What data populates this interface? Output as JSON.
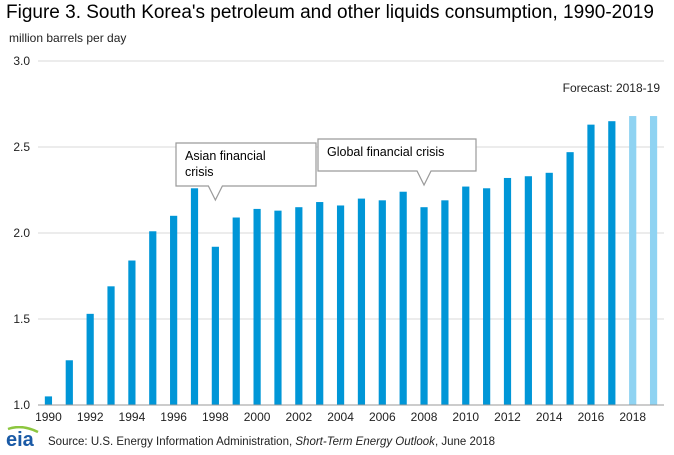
{
  "title": "Figure 3. South Korea's petroleum and other liquids consumption, 1990-2019",
  "ylabel": "million barrels per day",
  "forecast_label": "Forecast: 2018-19",
  "annotations": [
    {
      "text_lines": [
        "Asian financial",
        "crisis"
      ],
      "year": 1998
    },
    {
      "text_lines": [
        "Global financial crisis"
      ],
      "year": 2008
    }
  ],
  "source": {
    "prefix": "Source: U.S. Energy Information Administration, ",
    "italic": "Short-Term Energy Outlook",
    "suffix": ", June 2018"
  },
  "logo_text": "eia",
  "colors": {
    "historical": "#0096d7",
    "forecast": "#8fd3f2",
    "grid": "#d9d9d9"
  },
  "chart_data": {
    "type": "bar",
    "title": "Figure 3. South Korea's petroleum and other liquids consumption, 1990-2019",
    "ylabel": "million barrels per day",
    "xlabel": "",
    "ylim": [
      1.0,
      3.0
    ],
    "yticks": [
      "1.0",
      "1.5",
      "2.0",
      "2.5",
      "3.0"
    ],
    "xtick_labels": [
      "1990",
      "1992",
      "1994",
      "1996",
      "1998",
      "2000",
      "2002",
      "2004",
      "2006",
      "2008",
      "2010",
      "2012",
      "2014",
      "2016",
      "2018"
    ],
    "grid": true,
    "categories": [
      1990,
      1991,
      1992,
      1993,
      1994,
      1995,
      1996,
      1997,
      1998,
      1999,
      2000,
      2001,
      2002,
      2003,
      2004,
      2005,
      2006,
      2007,
      2008,
      2009,
      2010,
      2011,
      2012,
      2013,
      2014,
      2015,
      2016,
      2017,
      2018,
      2019
    ],
    "values": [
      1.05,
      1.26,
      1.53,
      1.69,
      1.84,
      2.01,
      2.1,
      2.26,
      1.92,
      2.09,
      2.14,
      2.13,
      2.15,
      2.18,
      2.16,
      2.2,
      2.19,
      2.24,
      2.15,
      2.19,
      2.27,
      2.26,
      2.32,
      2.33,
      2.35,
      2.47,
      2.63,
      2.65,
      2.68,
      2.68
    ],
    "forecast_from": 2018
  }
}
